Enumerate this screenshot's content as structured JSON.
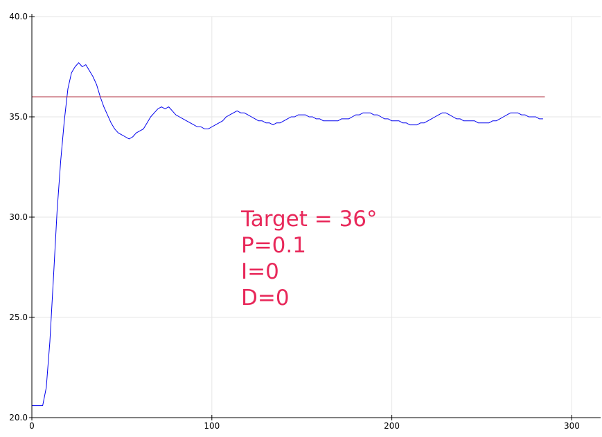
{
  "chart_data": {
    "type": "line",
    "title": "",
    "xlabel": "",
    "ylabel": "",
    "xlim": [
      0,
      316
    ],
    "ylim": [
      20,
      40
    ],
    "x_ticks": [
      0,
      100,
      200,
      300
    ],
    "x_tick_labels": [
      "0",
      "100",
      "200",
      "300"
    ],
    "y_ticks": [
      20,
      25,
      30,
      35,
      40
    ],
    "y_tick_labels": [
      "20.0",
      "25.0",
      "30.0",
      "35.0",
      "40.0"
    ],
    "grid": true,
    "colors": {
      "measured": "#0000ee",
      "target": "#b03040",
      "annotation": "#e8285a",
      "grid": "#e6e6e6",
      "axis": "#000000"
    },
    "series": [
      {
        "color": "#0000ee",
        "x": [
          0,
          6,
          8,
          10,
          12,
          14,
          16,
          18,
          20,
          22,
          24,
          26,
          28,
          30,
          32,
          34,
          36,
          38,
          40,
          42,
          44,
          46,
          48,
          50,
          52,
          54,
          56,
          58,
          60,
          62,
          64,
          66,
          68,
          70,
          72,
          74,
          76,
          78,
          80,
          82,
          84,
          86,
          88,
          90,
          92,
          94,
          96,
          98,
          100,
          102,
          104,
          106,
          108,
          110,
          112,
          114,
          116,
          118,
          120,
          122,
          124,
          126,
          128,
          130,
          132,
          134,
          136,
          138,
          140,
          142,
          144,
          146,
          148,
          150,
          152,
          154,
          156,
          158,
          160,
          162,
          164,
          166,
          168,
          170,
          172,
          174,
          176,
          178,
          180,
          182,
          184,
          186,
          188,
          190,
          192,
          194,
          196,
          198,
          200,
          202,
          204,
          206,
          208,
          210,
          212,
          214,
          216,
          218,
          220,
          222,
          224,
          226,
          228,
          230,
          232,
          234,
          236,
          238,
          240,
          242,
          244,
          246,
          248,
          250,
          252,
          254,
          256,
          258,
          260,
          262,
          264,
          266,
          268,
          270,
          272,
          274,
          276,
          278,
          280,
          282,
          284
        ],
        "values": [
          20.6,
          20.6,
          21.5,
          23.8,
          27.0,
          30.3,
          32.8,
          34.8,
          36.4,
          37.2,
          37.5,
          37.7,
          37.5,
          37.6,
          37.3,
          37.0,
          36.6,
          36.0,
          35.5,
          35.1,
          34.7,
          34.4,
          34.2,
          34.1,
          34.0,
          33.9,
          34.0,
          34.2,
          34.3,
          34.4,
          34.7,
          35.0,
          35.2,
          35.4,
          35.5,
          35.4,
          35.5,
          35.3,
          35.1,
          35.0,
          34.9,
          34.8,
          34.7,
          34.6,
          34.5,
          34.5,
          34.4,
          34.4,
          34.5,
          34.6,
          34.7,
          34.8,
          35.0,
          35.1,
          35.2,
          35.3,
          35.2,
          35.2,
          35.1,
          35.0,
          34.9,
          34.8,
          34.8,
          34.7,
          34.7,
          34.6,
          34.7,
          34.7,
          34.8,
          34.9,
          35.0,
          35.0,
          35.1,
          35.1,
          35.1,
          35.0,
          35.0,
          34.9,
          34.9,
          34.8,
          34.8,
          34.8,
          34.8,
          34.8,
          34.9,
          34.9,
          34.9,
          35.0,
          35.1,
          35.1,
          35.2,
          35.2,
          35.2,
          35.1,
          35.1,
          35.0,
          34.9,
          34.9,
          34.8,
          34.8,
          34.8,
          34.7,
          34.7,
          34.6,
          34.6,
          34.6,
          34.7,
          34.7,
          34.8,
          34.9,
          35.0,
          35.1,
          35.2,
          35.2,
          35.1,
          35.0,
          34.9,
          34.9,
          34.8,
          34.8,
          34.8,
          34.8,
          34.7,
          34.7,
          34.7,
          34.7,
          34.8,
          34.8,
          34.9,
          35.0,
          35.1,
          35.2,
          35.2,
          35.2,
          35.1,
          35.1,
          35.0,
          35.0,
          35.0,
          34.9,
          34.9
        ]
      },
      {
        "color": "#b03040",
        "x": [
          0,
          285
        ],
        "values": [
          36,
          36
        ]
      }
    ],
    "annotation": [
      "Target = 36°",
      "P=0.1",
      "I=0",
      "D=0"
    ]
  }
}
